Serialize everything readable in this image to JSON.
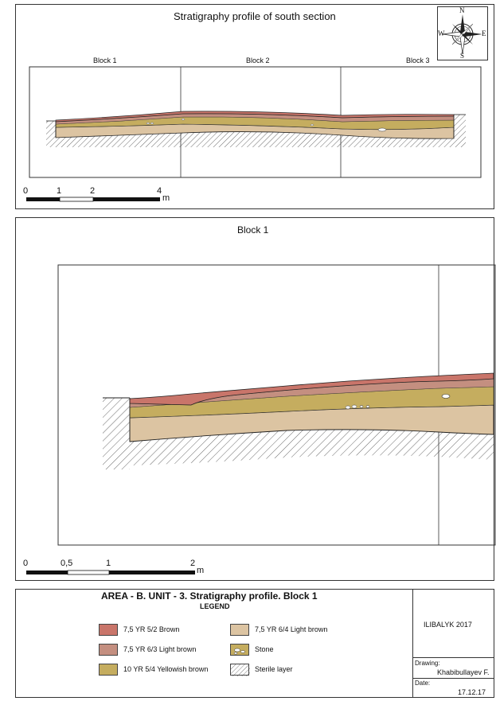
{
  "top_panel": {
    "title": "Stratigraphy profile of south section",
    "blocks": [
      "Block 1",
      "Block 2",
      "Block 3"
    ],
    "scale": {
      "ticks": [
        "0",
        "1",
        "2",
        "4"
      ],
      "unit": "m"
    },
    "compass": {
      "n": "N",
      "e": "E",
      "s": "S",
      "w": "W"
    }
  },
  "middle_panel": {
    "title": "Block 1",
    "scale": {
      "ticks": [
        "0",
        "0,5",
        "1",
        "2"
      ],
      "unit": "m"
    }
  },
  "legend_panel": {
    "title": "AREA - B. UNIT - 3. Stratigraphy profile. Block 1",
    "subtitle": "LEGEND",
    "items": [
      {
        "label": "7,5 YR 5/2 Brown",
        "color": "#c9756a"
      },
      {
        "label": "7,5 YR 6/3 Light brown",
        "color": "#c48f80"
      },
      {
        "label": "10 YR 5/4 Yellowish brown",
        "color": "#c5ad5f"
      },
      {
        "label": "7,5 YR 6/4 Light brown",
        "color": "#dcc4a2"
      },
      {
        "label": "Stone",
        "color": "#c5ad5f"
      },
      {
        "label": "Sterile layer",
        "color": "#ffffff"
      }
    ],
    "project": "ILIBALYK 2017",
    "drawing_label": "Drawing:",
    "drawing_value": "Khabibullayev F.",
    "date_label": "Date:",
    "date_value": "17.12.17"
  }
}
